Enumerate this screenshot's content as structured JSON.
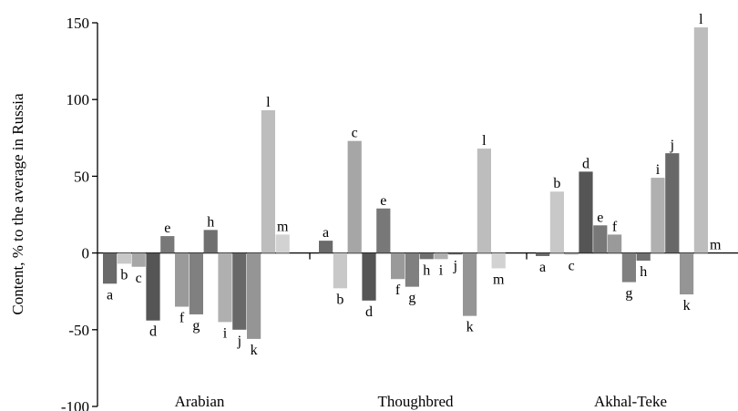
{
  "chart_data": {
    "type": "bar",
    "title": "",
    "xlabel": "",
    "ylabel": "Content, % to the average in Russia",
    "ylim": [
      -100,
      150
    ],
    "yticks": [
      -100,
      -50,
      0,
      50,
      100,
      150
    ],
    "ytick_labels": [
      "-100",
      "-50",
      "0",
      "50",
      "100",
      "150"
    ],
    "grid": false,
    "legend": "none",
    "categories": [
      "Arabian",
      "Thoughbred",
      "Akhal-Teke"
    ],
    "bar_labels": [
      "a",
      "b",
      "c",
      "d",
      "e",
      "f",
      "g",
      "h",
      "i",
      "j",
      "k",
      "l",
      "m"
    ],
    "bar_colors": [
      "#6a6a6a",
      "#c8c8c8",
      "#a6a6a6",
      "#555555",
      "#787878",
      "#9a9a9a",
      "#808080",
      "#707070",
      "#b0b0b0",
      "#686868",
      "#959595",
      "#bdbdbd",
      "#d2d2d2"
    ],
    "groups": [
      {
        "name": "Arabian",
        "values": [
          -20,
          -7,
          -9,
          -44,
          11,
          -35,
          -40,
          15,
          -45,
          -50,
          -56,
          93,
          12
        ]
      },
      {
        "name": "Thoughbred",
        "values": [
          8,
          -23,
          73,
          -31,
          29,
          -17,
          -22,
          -4,
          -4,
          -1,
          -41,
          68,
          -10
        ]
      },
      {
        "name": "Akhal-Teke",
        "values": [
          -2,
          40,
          -1,
          53,
          18,
          12,
          -19,
          -5,
          49,
          65,
          -27,
          147,
          0
        ]
      }
    ]
  }
}
